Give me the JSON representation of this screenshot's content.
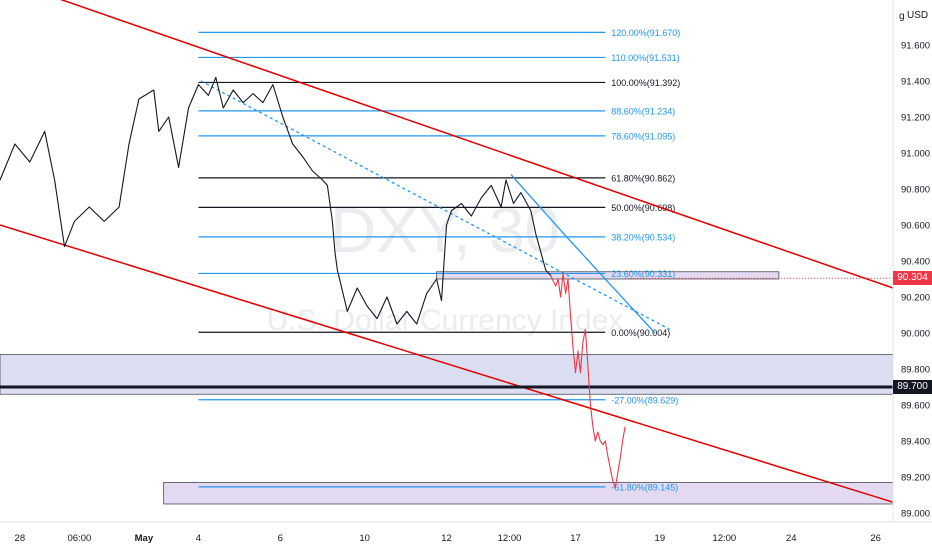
{
  "chart_data": {
    "type": "line",
    "symbol_watermark": "DXY, 30",
    "description_watermark": "U.S. Dollar Currency Index",
    "currency_label": "USD",
    "axis_icon": "g",
    "ylim": [
      88.95,
      91.85
    ],
    "yticks": [
      {
        "value": 91.6,
        "label": "91.600"
      },
      {
        "value": 91.4,
        "label": "91.400"
      },
      {
        "value": 91.2,
        "label": "91.200"
      },
      {
        "value": 91.0,
        "label": "91.000"
      },
      {
        "value": 90.8,
        "label": "90.800"
      },
      {
        "value": 90.6,
        "label": "90.600"
      },
      {
        "value": 90.4,
        "label": "90.400"
      },
      {
        "value": 90.2,
        "label": "90.200"
      },
      {
        "value": 90.0,
        "label": "90.000"
      },
      {
        "value": 89.8,
        "label": "89.800"
      },
      {
        "value": 89.6,
        "label": "89.600"
      },
      {
        "value": 89.4,
        "label": "89.400"
      },
      {
        "value": 89.2,
        "label": "89.200"
      },
      {
        "value": 89.0,
        "label": "89.000"
      }
    ],
    "xticks": [
      {
        "t": 0.4,
        "label": "28",
        "bold": false
      },
      {
        "t": 1.6,
        "label": "06:00",
        "bold": false
      },
      {
        "t": 2.9,
        "label": "May",
        "bold": true
      },
      {
        "t": 4.0,
        "label": "4",
        "bold": false
      },
      {
        "t": 5.65,
        "label": "6",
        "bold": false
      },
      {
        "t": 7.35,
        "label": "10",
        "bold": false
      },
      {
        "t": 9.0,
        "label": "12",
        "bold": false
      },
      {
        "t": 10.27,
        "label": "12:00",
        "bold": false
      },
      {
        "t": 11.6,
        "label": "17",
        "bold": false
      },
      {
        "t": 13.3,
        "label": "19",
        "bold": false
      },
      {
        "t": 14.6,
        "label": "12:00",
        "bold": false
      },
      {
        "t": 15.95,
        "label": "24",
        "bold": false
      },
      {
        "t": 17.65,
        "label": "26",
        "bold": false
      }
    ],
    "last_price": {
      "value": 90.304,
      "label": "90.304"
    },
    "highlight_level": {
      "value": 89.7,
      "label": "89.700"
    },
    "series": [
      {
        "color": "#131722",
        "points": [
          [
            0,
            90.85
          ],
          [
            0.3,
            91.05
          ],
          [
            0.6,
            90.95
          ],
          [
            0.9,
            91.12
          ],
          [
            1.1,
            90.85
          ],
          [
            1.3,
            90.48
          ],
          [
            1.5,
            90.62
          ],
          [
            1.8,
            90.7
          ],
          [
            2.1,
            90.62
          ],
          [
            2.4,
            90.7
          ],
          [
            2.6,
            91.05
          ],
          [
            2.8,
            91.3
          ],
          [
            3.1,
            91.35
          ],
          [
            3.2,
            91.12
          ],
          [
            3.4,
            91.2
          ],
          [
            3.6,
            90.92
          ],
          [
            3.8,
            91.25
          ],
          [
            4.0,
            91.38
          ],
          [
            4.2,
            91.32
          ],
          [
            4.35,
            91.42
          ],
          [
            4.5,
            91.25
          ],
          [
            4.7,
            91.35
          ],
          [
            4.9,
            91.28
          ],
          [
            5.1,
            91.33
          ],
          [
            5.3,
            91.28
          ],
          [
            5.5,
            91.38
          ],
          [
            5.7,
            91.2
          ],
          [
            5.9,
            91.05
          ],
          [
            6.1,
            90.98
          ],
          [
            6.3,
            90.9
          ],
          [
            6.5,
            90.85
          ],
          [
            6.6,
            90.82
          ],
          [
            6.7,
            90.62
          ],
          [
            6.75,
            90.45
          ],
          [
            6.8,
            90.35
          ],
          [
            7.0,
            90.12
          ],
          [
            7.2,
            90.25
          ],
          [
            7.4,
            90.15
          ],
          [
            7.6,
            90.08
          ],
          [
            7.8,
            90.2
          ],
          [
            8.0,
            90.05
          ],
          [
            8.2,
            90.12
          ],
          [
            8.4,
            90.05
          ],
          [
            8.6,
            90.22
          ],
          [
            8.8,
            90.3
          ],
          [
            8.9,
            90.18
          ],
          [
            9.0,
            90.6
          ],
          [
            9.1,
            90.68
          ],
          [
            9.3,
            90.72
          ],
          [
            9.5,
            90.65
          ],
          [
            9.7,
            90.75
          ],
          [
            9.9,
            90.82
          ],
          [
            10.1,
            90.7
          ],
          [
            10.2,
            90.85
          ],
          [
            10.35,
            90.72
          ],
          [
            10.5,
            90.78
          ],
          [
            10.7,
            90.68
          ],
          [
            10.8,
            90.55
          ],
          [
            10.9,
            90.45
          ],
          [
            11.0,
            90.35
          ],
          [
            11.1,
            90.32
          ]
        ]
      },
      {
        "color": "#f23645",
        "points": [
          [
            11.1,
            90.32
          ],
          [
            11.2,
            90.26
          ],
          [
            11.25,
            90.3
          ],
          [
            11.3,
            90.2
          ],
          [
            11.35,
            90.33
          ],
          [
            11.4,
            90.22
          ],
          [
            11.45,
            90.3
          ],
          [
            11.5,
            90.1
          ],
          [
            11.55,
            89.92
          ],
          [
            11.6,
            89.78
          ],
          [
            11.65,
            89.9
          ],
          [
            11.7,
            89.78
          ],
          [
            11.75,
            89.95
          ],
          [
            11.8,
            90.02
          ],
          [
            11.85,
            89.82
          ],
          [
            11.9,
            89.6
          ],
          [
            11.95,
            89.48
          ],
          [
            12.0,
            89.4
          ],
          [
            12.05,
            89.45
          ],
          [
            12.1,
            89.4
          ],
          [
            12.15,
            89.38
          ],
          [
            12.2,
            89.4
          ],
          [
            12.25,
            89.32
          ],
          [
            12.3,
            89.25
          ],
          [
            12.35,
            89.18
          ],
          [
            12.4,
            89.14
          ],
          [
            12.45,
            89.22
          ],
          [
            12.5,
            89.3
          ],
          [
            12.55,
            89.4
          ],
          [
            12.6,
            89.48
          ]
        ]
      }
    ],
    "fib_levels": [
      {
        "label": "120.00%(91.670)",
        "value": 91.67,
        "color": "#2196f3"
      },
      {
        "label": "110.00%(91.531)",
        "value": 91.531,
        "color": "#2196f3"
      },
      {
        "label": "100.00%(91.392)",
        "value": 91.392,
        "color": "#131722"
      },
      {
        "label": "88.60%(91.234)",
        "value": 91.234,
        "color": "#2196f3"
      },
      {
        "label": "78.60%(91.095)",
        "value": 91.095,
        "color": "#2196f3"
      },
      {
        "label": "61.80%(90.862)",
        "value": 90.862,
        "color": "#131722"
      },
      {
        "label": "50.00%(90.698)",
        "value": 90.698,
        "color": "#131722"
      },
      {
        "label": "38.20%(90.534)",
        "value": 90.534,
        "color": "#2196f3"
      },
      {
        "label": "23.60%(90.331)",
        "value": 90.331,
        "color": "#2196f3"
      },
      {
        "label": "0.00%(90.004)",
        "value": 90.004,
        "color": "#131722"
      },
      {
        "label": "-27.00%(89.629)",
        "value": 89.629,
        "color": "#2196f3"
      },
      {
        "label": "-61.80%(89.145)",
        "value": 89.145,
        "color": "#2196f3"
      }
    ],
    "fib_range": {
      "t_start": 4.0,
      "t_end": 12.2
    },
    "channel_lines": [
      {
        "color": "#e00000",
        "points": [
          [
            0,
            91.97
          ],
          [
            18.0,
            90.25
          ]
        ]
      },
      {
        "color": "#e00000",
        "points": [
          [
            0,
            90.6
          ],
          [
            18.0,
            89.06
          ]
        ]
      }
    ],
    "trend_lines": [
      {
        "color": "#2196f3",
        "dashed": false,
        "points": [
          [
            10.3,
            90.88
          ],
          [
            11.4,
            90.54
          ],
          [
            13.2,
            90.0
          ]
        ]
      },
      {
        "color": "#2196f3",
        "dashed": true,
        "points": [
          [
            4.05,
            91.4
          ],
          [
            13.5,
            90.02
          ]
        ]
      }
    ],
    "zones": [
      {
        "color": "#5c6bc0",
        "y_top": 89.88,
        "y_bottom": 89.66,
        "t_start": 0,
        "t_end": 18.0
      },
      {
        "color": "#7e57c2",
        "y_top": 90.34,
        "y_bottom": 90.3,
        "t_start": 8.8,
        "t_end": 15.7
      },
      {
        "color": "#7e57c2",
        "y_top": 89.17,
        "y_bottom": 89.05,
        "t_start": 3.3,
        "t_end": 18.0
      }
    ]
  }
}
